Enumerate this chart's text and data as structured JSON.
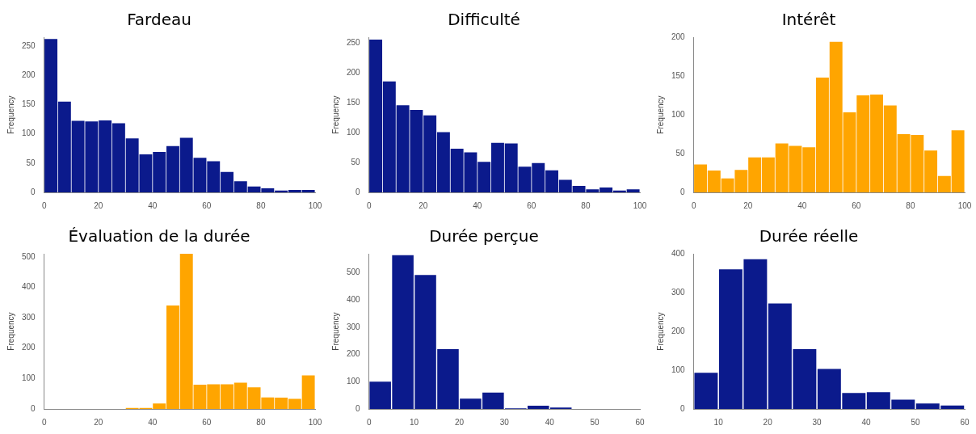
{
  "chart_data": [
    {
      "type": "histogram",
      "title": "Fardeau",
      "ylabel": "Frequency",
      "color": "#0b1a8c",
      "bins": [
        0,
        5,
        10,
        15,
        20,
        25,
        30,
        35,
        40,
        45,
        50,
        55,
        60,
        65,
        70,
        75,
        80,
        85,
        90,
        95,
        100
      ],
      "values": [
        262,
        155,
        122,
        121,
        123,
        118,
        92,
        65,
        69,
        79,
        93,
        59,
        53,
        35,
        19,
        10,
        7,
        3,
        4,
        4
      ],
      "xlim": [
        0,
        100
      ],
      "xticks": [
        0,
        20,
        40,
        60,
        80,
        100
      ],
      "ylim": [
        0,
        265
      ],
      "yticks": [
        0,
        50,
        100,
        150,
        200,
        250
      ]
    },
    {
      "type": "histogram",
      "title": "Difficulté",
      "ylabel": "Frequency",
      "color": "#0b1a8c",
      "bins": [
        0,
        5,
        10,
        15,
        20,
        25,
        30,
        35,
        40,
        45,
        50,
        55,
        60,
        65,
        70,
        75,
        80,
        85,
        90,
        95,
        100
      ],
      "values": [
        256,
        186,
        146,
        138,
        129,
        101,
        73,
        67,
        51,
        83,
        82,
        43,
        49,
        37,
        21,
        11,
        5,
        8,
        3,
        5
      ],
      "xlim": [
        0,
        100
      ],
      "xticks": [
        0,
        20,
        40,
        60,
        80,
        100
      ],
      "ylim": [
        0,
        260
      ],
      "yticks": [
        0,
        50,
        100,
        150,
        200,
        250
      ]
    },
    {
      "type": "histogram",
      "title": "Intérêt",
      "ylabel": "Frequency",
      "color": "#ffa500",
      "bins": [
        0,
        5,
        10,
        15,
        20,
        25,
        30,
        35,
        40,
        45,
        50,
        55,
        60,
        65,
        70,
        75,
        80,
        85,
        90,
        95,
        100
      ],
      "values": [
        36,
        28,
        18,
        29,
        45,
        45,
        63,
        60,
        58,
        148,
        194,
        103,
        125,
        126,
        112,
        75,
        74,
        54,
        21,
        80
      ],
      "xlim": [
        0,
        100
      ],
      "xticks": [
        0,
        20,
        40,
        60,
        80,
        100
      ],
      "ylim": [
        0,
        200
      ],
      "yticks": [
        0,
        50,
        100,
        150,
        200
      ]
    },
    {
      "type": "histogram",
      "title": "Évaluation de la durée",
      "ylabel": "Frequency",
      "color": "#ffa500",
      "bins": [
        30,
        35,
        40,
        45,
        50,
        55,
        60,
        65,
        70,
        75,
        80,
        85,
        90,
        95,
        100
      ],
      "values": [
        3,
        3,
        18,
        340,
        510,
        80,
        81,
        81,
        86,
        71,
        38,
        37,
        33,
        110
      ],
      "xlim": [
        0,
        100
      ],
      "xticks": [
        0,
        20,
        40,
        60,
        80,
        100
      ],
      "ylim": [
        0,
        510
      ],
      "yticks": [
        0,
        100,
        200,
        300,
        400,
        500
      ]
    },
    {
      "type": "histogram",
      "title": "Durée perçue",
      "ylabel": "Frequency",
      "color": "#0b1a8c",
      "bins": [
        0,
        5,
        10,
        15,
        20,
        25,
        30,
        35,
        40,
        45
      ],
      "values": [
        100,
        565,
        492,
        220,
        38,
        60,
        2,
        12,
        5
      ],
      "xlim": [
        0,
        60
      ],
      "xticks": [
        0,
        10,
        20,
        30,
        40,
        50,
        60
      ],
      "ylim": [
        0,
        570
      ],
      "yticks": [
        0,
        100,
        200,
        300,
        400,
        500
      ]
    },
    {
      "type": "histogram",
      "title": "Durée réelle",
      "ylabel": "Frequency",
      "color": "#0b1a8c",
      "bins": [
        5,
        10,
        15,
        20,
        25,
        30,
        35,
        40,
        45,
        50,
        55,
        60
      ],
      "values": [
        93,
        360,
        386,
        272,
        154,
        103,
        41,
        43,
        24,
        14,
        9
      ],
      "xlim": [
        5,
        60
      ],
      "xticks": [
        10,
        20,
        30,
        40,
        50,
        60
      ],
      "ylim": [
        0,
        400
      ],
      "yticks": [
        0,
        100,
        200,
        300,
        400
      ]
    }
  ]
}
